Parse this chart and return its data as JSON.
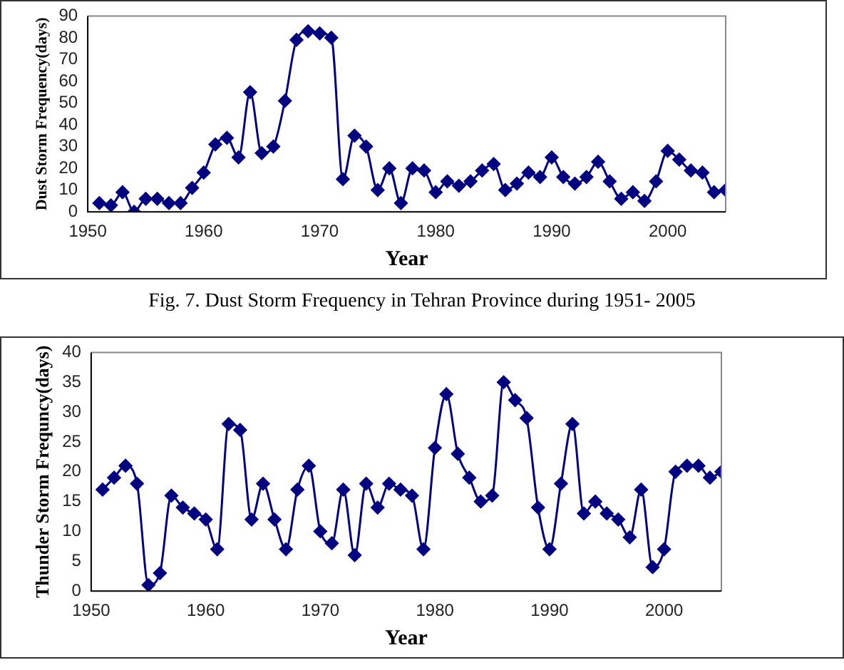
{
  "chart_data": [
    {
      "type": "line",
      "xlabel": "Year",
      "ylabel": "Dust Storm Frequency(days)",
      "annotations": [
        "Fig. 7. Dust Storm Frequency in Tehran Province during 1951- 2005"
      ],
      "x": [
        1951,
        1952,
        1953,
        1954,
        1955,
        1956,
        1957,
        1958,
        1959,
        1960,
        1961,
        1962,
        1963,
        1964,
        1965,
        1966,
        1967,
        1968,
        1969,
        1970,
        1971,
        1972,
        1973,
        1974,
        1975,
        1976,
        1977,
        1978,
        1979,
        1980,
        1981,
        1982,
        1983,
        1984,
        1985,
        1986,
        1987,
        1988,
        1989,
        1990,
        1991,
        1992,
        1993,
        1994,
        1995,
        1996,
        1997,
        1998,
        1999,
        2000,
        2001,
        2002,
        2003,
        2004,
        2005
      ],
      "series": [
        {
          "color": "#000080",
          "values": [
            4,
            3,
            9,
            0,
            6,
            6,
            4,
            4,
            11,
            18,
            31,
            34,
            25,
            55,
            27,
            30,
            51,
            79,
            83,
            82,
            80,
            15,
            35,
            30,
            10,
            20,
            4,
            20,
            19,
            9,
            14,
            12,
            14,
            19,
            22,
            10,
            13,
            18,
            16,
            25,
            16,
            13,
            16,
            23,
            14,
            6,
            9,
            5,
            14,
            28,
            24,
            19,
            18,
            9,
            10
          ]
        }
      ],
      "xlim": [
        1950,
        2005
      ],
      "xticks": [
        1950,
        1960,
        1970,
        1980,
        1990,
        2000
      ],
      "ylim": [
        0,
        90
      ],
      "yticks": [
        0,
        10,
        20,
        30,
        40,
        50,
        60,
        70,
        80,
        90
      ],
      "grid": false,
      "legend": false,
      "marker": "diamond",
      "line_style": "solid"
    },
    {
      "type": "line",
      "xlabel": "Year",
      "ylabel": "Thunder Storm Frequncy(days)",
      "x": [
        1951,
        1952,
        1953,
        1954,
        1955,
        1956,
        1957,
        1958,
        1959,
        1960,
        1961,
        1962,
        1963,
        1964,
        1965,
        1966,
        1967,
        1968,
        1969,
        1970,
        1971,
        1972,
        1973,
        1974,
        1975,
        1976,
        1977,
        1978,
        1979,
        1980,
        1981,
        1982,
        1983,
        1984,
        1985,
        1986,
        1987,
        1988,
        1989,
        1990,
        1991,
        1992,
        1993,
        1994,
        1995,
        1996,
        1997,
        1998,
        1999,
        2000,
        2001,
        2002,
        2003,
        2004,
        2005
      ],
      "series": [
        {
          "color": "#000080",
          "values": [
            17,
            19,
            21,
            18,
            1,
            3,
            16,
            14,
            13,
            12,
            7,
            28,
            27,
            12,
            18,
            12,
            7,
            17,
            21,
            10,
            8,
            17,
            6,
            18,
            14,
            18,
            17,
            16,
            7,
            24,
            33,
            23,
            19,
            15,
            16,
            35,
            32,
            29,
            14,
            7,
            18,
            28,
            13,
            15,
            13,
            12,
            9,
            17,
            4,
            7,
            20,
            21,
            21,
            19,
            20
          ]
        }
      ],
      "xlim": [
        1950,
        2005
      ],
      "xticks": [
        1950,
        1960,
        1970,
        1980,
        1990,
        2000
      ],
      "ylim": [
        0,
        40
      ],
      "yticks": [
        0,
        5,
        10,
        15,
        20,
        25,
        30,
        35,
        40
      ],
      "grid": false,
      "legend": false,
      "marker": "diamond",
      "line_style": "solid"
    }
  ]
}
